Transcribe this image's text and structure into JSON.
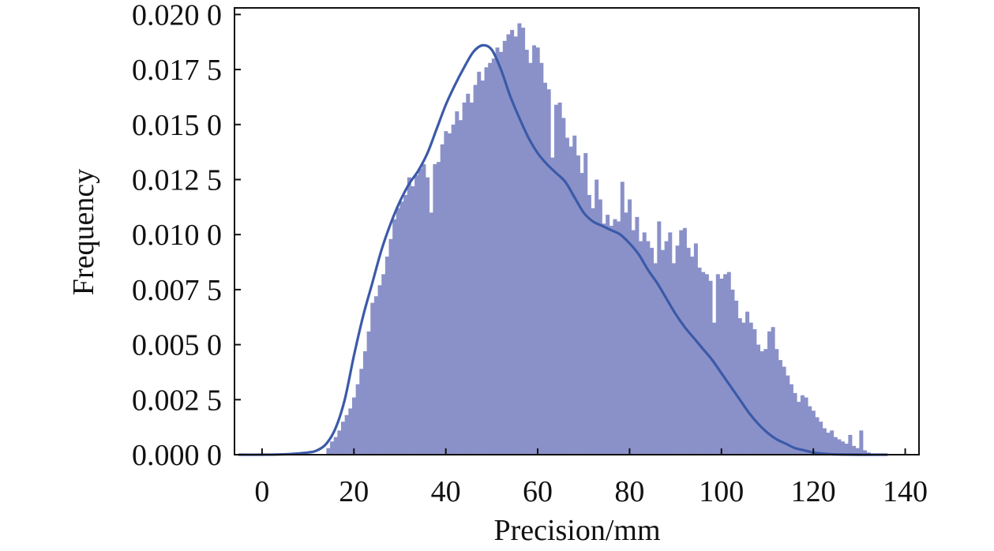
{
  "chart_data": {
    "type": "bar",
    "subtype": "histogram-with-density-curve",
    "xlabel": "Precision/mm",
    "ylabel": "Frequency",
    "xlim": [
      -6,
      143
    ],
    "ylim": [
      0,
      0.0203
    ],
    "x_ticks": [
      0,
      20,
      40,
      60,
      80,
      100,
      120,
      140
    ],
    "x_tick_labels": [
      "0",
      "20",
      "40",
      "60",
      "80",
      "100",
      "120",
      "140"
    ],
    "y_ticks": [
      0,
      0.0025,
      0.005,
      0.0075,
      0.01,
      0.0125,
      0.015,
      0.0175,
      0.02
    ],
    "y_tick_labels": [
      "0.000 0",
      "0.002 5",
      "0.005 0",
      "0.007 5",
      "0.010 0",
      "0.012 5",
      "0.015 0",
      "0.017 5",
      "0.020 0"
    ],
    "grid": false,
    "legend": "none",
    "colors": {
      "bars": "#8a91c9",
      "curve": "#3b5aa8",
      "axis": "#111111"
    },
    "histogram": {
      "bin_start": 14,
      "bin_width": 0.8,
      "densities": [
        0.0003,
        0.0006,
        0.0008,
        0.0011,
        0.0015,
        0.0018,
        0.0021,
        0.0026,
        0.0032,
        0.0039,
        0.0047,
        0.0056,
        0.0069,
        0.0072,
        0.0077,
        0.0082,
        0.009,
        0.0098,
        0.0107,
        0.0112,
        0.0115,
        0.0118,
        0.0126,
        0.0122,
        0.0127,
        0.013,
        0.0132,
        0.0126,
        0.011,
        0.0132,
        0.0133,
        0.0141,
        0.0147,
        0.0146,
        0.015,
        0.0156,
        0.0152,
        0.016,
        0.0164,
        0.016,
        0.0168,
        0.0174,
        0.017,
        0.0176,
        0.0178,
        0.018,
        0.0185,
        0.0183,
        0.0188,
        0.0191,
        0.0193,
        0.019,
        0.0196,
        0.0194,
        0.0184,
        0.0178,
        0.0186,
        0.0185,
        0.0178,
        0.0169,
        0.0166,
        0.0135,
        0.0159,
        0.016,
        0.0153,
        0.0144,
        0.014,
        0.0145,
        0.0136,
        0.0128,
        0.0137,
        0.0118,
        0.0112,
        0.0125,
        0.0116,
        0.0105,
        0.0109,
        0.0104,
        0.0107,
        0.0106,
        0.0124,
        0.011,
        0.0116,
        0.0102,
        0.0108,
        0.0097,
        0.0101,
        0.0097,
        0.0094,
        0.0087,
        0.0106,
        0.0093,
        0.0097,
        0.0101,
        0.0087,
        0.0095,
        0.0102,
        0.0103,
        0.0094,
        0.009,
        0.0096,
        0.0085,
        0.0083,
        0.0082,
        0.0079,
        0.006,
        0.0082,
        0.008,
        0.0082,
        0.0083,
        0.0075,
        0.007,
        0.0062,
        0.006,
        0.0065,
        0.006,
        0.0057,
        0.005,
        0.0047,
        0.0048,
        0.0056,
        0.0058,
        0.0048,
        0.0043,
        0.004,
        0.0036,
        0.0032,
        0.0028,
        0.0024,
        0.0027,
        0.0026,
        0.0022,
        0.002,
        0.0017,
        0.0015,
        0.0012,
        0.001,
        0.0011,
        0.0008,
        0.0007,
        0.0006,
        0.0005,
        0.0009,
        0.0004,
        0.0003,
        0.0011,
        0.0002,
        0.0001
      ]
    },
    "density_curve": {
      "x": [
        -5,
        0,
        5,
        10,
        12,
        14,
        16,
        18,
        20,
        22,
        24,
        26,
        28,
        30,
        32,
        34,
        36,
        38,
        40,
        42,
        44,
        46,
        48,
        50,
        52,
        54,
        56,
        58,
        60,
        62,
        64,
        66,
        68,
        70,
        72,
        74,
        76,
        78,
        80,
        82,
        84,
        86,
        88,
        90,
        92,
        94,
        96,
        98,
        100,
        102,
        104,
        106,
        108,
        110,
        112,
        114,
        116,
        118,
        120,
        122,
        124,
        126,
        130,
        136
      ],
      "y": [
        0,
        0,
        2e-05,
        0.0001,
        0.0002,
        0.0005,
        0.0012,
        0.0025,
        0.0045,
        0.0063,
        0.0078,
        0.0093,
        0.0105,
        0.0115,
        0.0123,
        0.0129,
        0.0137,
        0.0148,
        0.0159,
        0.0168,
        0.0176,
        0.0183,
        0.0186,
        0.0184,
        0.0175,
        0.0163,
        0.0153,
        0.0144,
        0.0137,
        0.0132,
        0.0128,
        0.0124,
        0.0117,
        0.011,
        0.0106,
        0.0104,
        0.0102,
        0.01,
        0.0096,
        0.0091,
        0.0084,
        0.0078,
        0.0071,
        0.0064,
        0.0058,
        0.0053,
        0.0048,
        0.0043,
        0.0037,
        0.0031,
        0.0025,
        0.0019,
        0.0014,
        0.001,
        0.0007,
        0.0005,
        0.0003,
        0.0002,
        0.0001,
        5e-05,
        2e-05,
        1e-05,
        0,
        0
      ]
    }
  }
}
